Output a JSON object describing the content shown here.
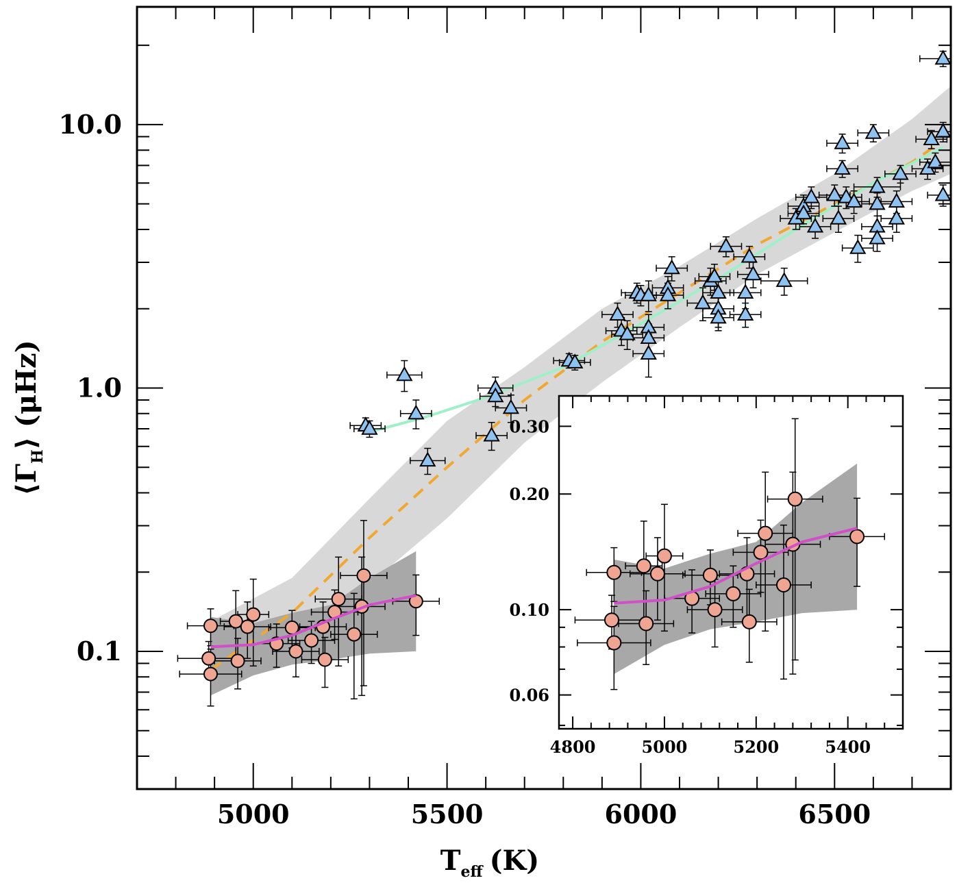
{
  "chart_data": [
    {
      "type": "scatter",
      "xlabel": "T",
      "xlabel_subscript": "eff",
      "xlabel_unit": "(K)",
      "ylabel_prefix": "⟨Γ",
      "ylabel_subscript": "H",
      "ylabel_suffix": "⟩  (μHz)",
      "xlim": [
        4700,
        6800
      ],
      "ylim": [
        0.03,
        28
      ],
      "yscale": "log",
      "x_ticks": [
        "5000",
        "5500",
        "6000",
        "6500"
      ],
      "x_tick_values": [
        5000,
        5500,
        6000,
        6500
      ],
      "y_ticks": [
        "0.1",
        "1.0",
        "10.0"
      ],
      "y_tick_values": [
        0.1,
        1.0,
        10.0
      ],
      "colors": {
        "triangles": "#8ec2f0",
        "circles": "#f0a592",
        "orange_fit": "#f0a830",
        "cyan_fit": "#9ff0c8",
        "magenta_fit": "#d050c8",
        "band_light": "#d8d8d8",
        "band_dark": "#a8a8a8"
      },
      "series": [
        {
          "marker": "triangle",
          "points": [
            [
              5290,
              0.72,
              40,
              0.05
            ],
            [
              5300,
              0.7,
              40,
              0.05
            ],
            [
              5390,
              1.12,
              45,
              0.15
            ],
            [
              5420,
              0.8,
              40,
              0.1
            ],
            [
              5450,
              0.53,
              45,
              0.06
            ],
            [
              5615,
              0.66,
              40,
              0.08
            ],
            [
              5625,
              1.0,
              45,
              0.1
            ],
            [
              5625,
              0.93,
              40,
              0.08
            ],
            [
              5665,
              0.84,
              40,
              0.1
            ],
            [
              5815,
              1.27,
              40,
              0.08
            ],
            [
              5830,
              1.25,
              40,
              0.08
            ],
            [
              5940,
              1.9,
              40,
              0.2
            ],
            [
              5950,
              1.65,
              40,
              0.2
            ],
            [
              5965,
              1.6,
              40,
              0.2
            ],
            [
              5990,
              2.3,
              40,
              0.2
            ],
            [
              6000,
              2.25,
              40,
              0.2
            ],
            [
              6020,
              2.25,
              40,
              0.3
            ],
            [
              6020,
              1.7,
              40,
              0.2
            ],
            [
              6020,
              1.55,
              40,
              0.2
            ],
            [
              6020,
              1.35,
              40,
              0.25
            ],
            [
              6070,
              2.4,
              40,
              0.25
            ],
            [
              6070,
              2.25,
              40,
              0.25
            ],
            [
              6080,
              2.85,
              40,
              0.3
            ],
            [
              6160,
              2.1,
              40,
              0.3
            ],
            [
              6180,
              2.55,
              40,
              0.3
            ],
            [
              6190,
              2.65,
              40,
              0.3
            ],
            [
              6200,
              2.3,
              40,
              0.3
            ],
            [
              6200,
              2.0,
              40,
              0.3
            ],
            [
              6200,
              1.85,
              40,
              0.2
            ],
            [
              6220,
              3.45,
              40,
              0.3
            ],
            [
              6270,
              2.3,
              40,
              0.3
            ],
            [
              6270,
              1.9,
              40,
              0.2
            ],
            [
              6280,
              3.15,
              40,
              0.3
            ],
            [
              6290,
              2.7,
              40,
              0.3
            ],
            [
              6370,
              2.55,
              60,
              0.3
            ],
            [
              6400,
              4.4,
              40,
              0.4
            ],
            [
              6420,
              4.9,
              40,
              0.5
            ],
            [
              6420,
              4.6,
              40,
              0.4
            ],
            [
              6440,
              5.3,
              40,
              0.5
            ],
            [
              6450,
              4.1,
              40,
              0.4
            ],
            [
              6500,
              5.4,
              40,
              0.5
            ],
            [
              6510,
              4.4,
              40,
              0.5
            ],
            [
              6520,
              6.8,
              40,
              0.5
            ],
            [
              6520,
              8.5,
              40,
              0.7
            ],
            [
              6530,
              5.3,
              40,
              0.5
            ],
            [
              6550,
              5.1,
              40,
              0.5
            ],
            [
              6560,
              3.4,
              40,
              0.4
            ],
            [
              6600,
              9.3,
              40,
              0.7
            ],
            [
              6610,
              5.0,
              40,
              0.5
            ],
            [
              6610,
              4.1,
              40,
              0.4
            ],
            [
              6610,
              3.7,
              40,
              0.4
            ],
            [
              6610,
              5.8,
              60,
              0.5
            ],
            [
              6660,
              5.1,
              40,
              0.5
            ],
            [
              6660,
              4.4,
              40,
              0.5
            ],
            [
              6670,
              6.5,
              40,
              0.5
            ],
            [
              6780,
              17.8,
              60,
              1.2
            ],
            [
              6740,
              6.8,
              40,
              0.6
            ],
            [
              6750,
              8.8,
              40,
              0.7
            ],
            [
              6760,
              7.2,
              40,
              0.6
            ],
            [
              6780,
              9.4,
              40,
              0.8
            ],
            [
              6780,
              5.4,
              40,
              0.5
            ]
          ]
        },
        {
          "marker": "circle",
          "points": [
            [
              4890,
              0.125,
              60,
              0.02
            ],
            [
              4885,
              0.094,
              80,
              0.015
            ],
            [
              4890,
              0.082,
              80,
              0.02
            ],
            [
              4955,
              0.13,
              40,
              0.04
            ],
            [
              4960,
              0.092,
              60,
              0.02
            ],
            [
              4985,
              0.124,
              60,
              0.03
            ],
            [
              5000,
              0.138,
              40,
              0.05
            ],
            [
              5060,
              0.107,
              60,
              0.02
            ],
            [
              5100,
              0.123,
              60,
              0.02
            ],
            [
              5110,
              0.1,
              60,
              0.02
            ],
            [
              5150,
              0.11,
              60,
              0.02
            ],
            [
              5180,
              0.124,
              60,
              0.03
            ],
            [
              5185,
              0.093,
              60,
              0.02
            ],
            [
              5210,
              0.141,
              60,
              0.03
            ],
            [
              5220,
              0.158,
              60,
              0.07
            ],
            [
              5260,
              0.116,
              60,
              0.05
            ],
            [
              5280,
              0.148,
              60,
              0.08
            ],
            [
              5285,
              0.194,
              60,
              0.12
            ],
            [
              5420,
              0.155,
              60,
              0.04
            ]
          ]
        }
      ],
      "fits": [
        {
          "name": "orange-dashed-fit",
          "x": [
            4890,
            5100,
            5300,
            5500,
            5700,
            5900,
            6100,
            6300,
            6500,
            6700,
            6760
          ],
          "y": [
            0.085,
            0.14,
            0.27,
            0.5,
            0.9,
            1.5,
            2.3,
            3.5,
            5.0,
            7.2,
            8.3
          ]
        },
        {
          "name": "cyan-fit",
          "x": [
            5300,
            5450,
            5600,
            5800,
            6000,
            6200,
            6400,
            6600,
            6780
          ],
          "y": [
            0.68,
            0.78,
            0.92,
            1.2,
            1.75,
            2.6,
            4.0,
            6.0,
            8.2
          ]
        },
        {
          "name": "magenta-fit",
          "x": [
            4890,
            5000,
            5100,
            5200,
            5300,
            5420
          ],
          "y": [
            0.104,
            0.106,
            0.115,
            0.132,
            0.15,
            0.163
          ]
        }
      ],
      "bands": [
        {
          "name": "light-band",
          "x": [
            4890,
            5100,
            5300,
            5500,
            5700,
            5900,
            6100,
            6300,
            6500,
            6700,
            6800
          ],
          "lower": [
            0.08,
            0.11,
            0.18,
            0.32,
            0.62,
            1.05,
            1.7,
            2.7,
            3.9,
            5.6,
            6.5
          ],
          "upper": [
            0.13,
            0.19,
            0.38,
            0.75,
            1.2,
            2.0,
            2.9,
            4.4,
            6.5,
            10.5,
            14.0
          ]
        },
        {
          "name": "dark-band",
          "x": [
            4890,
            5000,
            5100,
            5200,
            5300,
            5420
          ],
          "lower": [
            0.068,
            0.081,
            0.089,
            0.093,
            0.098,
            0.1
          ],
          "upper": [
            0.135,
            0.128,
            0.14,
            0.15,
            0.19,
            0.24
          ]
        }
      ]
    },
    {
      "type": "scatter",
      "xlim": [
        4770,
        5520
      ],
      "ylim": [
        0.049,
        0.36
      ],
      "yscale": "log",
      "x_ticks": [
        "4800",
        "5000",
        "5200",
        "5400"
      ],
      "x_tick_values": [
        4800,
        5000,
        5200,
        5400
      ],
      "y_ticks": [
        "0.06",
        "0.10",
        "0.20",
        "0.30"
      ],
      "y_tick_values": [
        0.06,
        0.1,
        0.2,
        0.3
      ],
      "series": [
        {
          "marker": "circle",
          "points": [
            [
              4890,
              0.125,
              60,
              0.02
            ],
            [
              4885,
              0.094,
              80,
              0.015
            ],
            [
              4890,
              0.082,
              80,
              0.02
            ],
            [
              4955,
              0.13,
              40,
              0.04
            ],
            [
              4960,
              0.092,
              60,
              0.02
            ],
            [
              4985,
              0.124,
              60,
              0.03
            ],
            [
              5000,
              0.138,
              40,
              0.05
            ],
            [
              5060,
              0.107,
              60,
              0.02
            ],
            [
              5100,
              0.123,
              60,
              0.02
            ],
            [
              5110,
              0.1,
              60,
              0.02
            ],
            [
              5150,
              0.11,
              60,
              0.02
            ],
            [
              5180,
              0.124,
              60,
              0.03
            ],
            [
              5185,
              0.093,
              60,
              0.02
            ],
            [
              5210,
              0.141,
              60,
              0.03
            ],
            [
              5220,
              0.158,
              60,
              0.07
            ],
            [
              5260,
              0.116,
              60,
              0.05
            ],
            [
              5280,
              0.148,
              60,
              0.08
            ],
            [
              5285,
              0.194,
              60,
              0.12
            ],
            [
              5420,
              0.155,
              60,
              0.04
            ]
          ]
        }
      ]
    }
  ]
}
